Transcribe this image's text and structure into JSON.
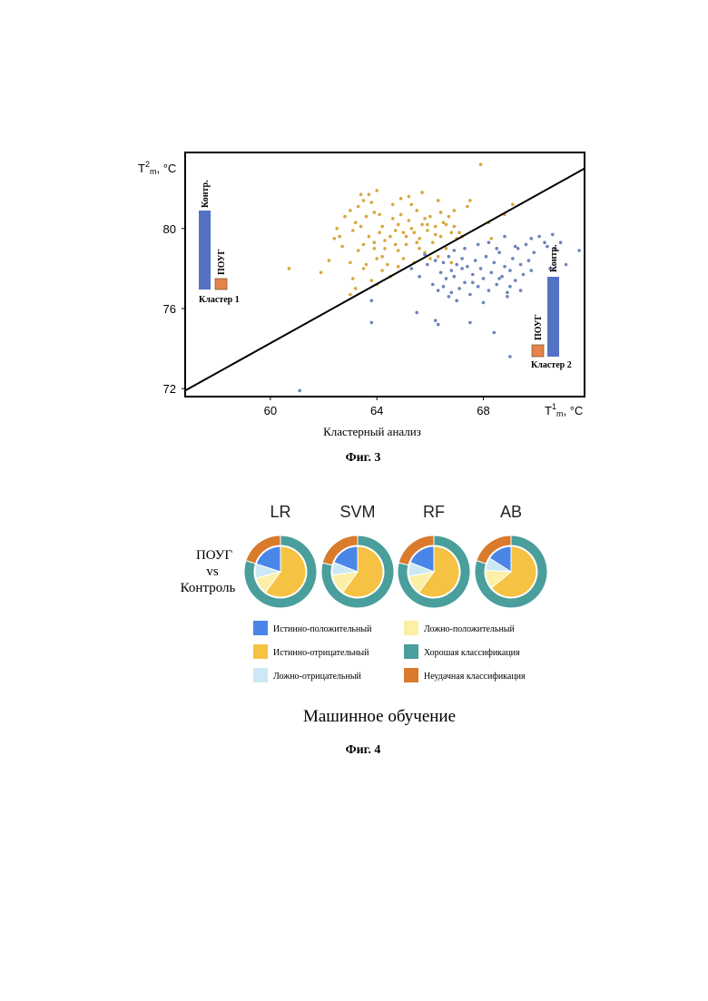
{
  "figure3": {
    "caption": "Фиг. 3",
    "chart_data": {
      "type": "scatter",
      "xlabel": "Кластерный анализ",
      "x_axis_title_parts": [
        "T",
        "1",
        "m",
        ", °C"
      ],
      "y_axis_title_parts": [
        "T",
        "2",
        "m",
        ", °C"
      ],
      "xlim": [
        56.8,
        71.8
      ],
      "ylim": [
        71.6,
        83.8
      ],
      "x_ticks": [
        60,
        64,
        68
      ],
      "x_tick_labels": [
        "60",
        "64",
        "68"
      ],
      "y_ticks": [
        72,
        76,
        80
      ],
      "y_tick_labels": [
        "72",
        "76",
        "80"
      ],
      "separator_line": [
        [
          56.8,
          71.9
        ],
        [
          71.8,
          83.0
        ]
      ],
      "series": [
        {
          "color": "#d6a83e",
          "points": [
            [
              60.7,
              78.0
            ],
            [
              61.9,
              77.8
            ],
            [
              62.2,
              78.4
            ],
            [
              62.4,
              79.5
            ],
            [
              62.5,
              80.0
            ],
            [
              62.7,
              79.1
            ],
            [
              62.8,
              80.6
            ],
            [
              63.0,
              80.9
            ],
            [
              63.1,
              79.9
            ],
            [
              63.2,
              80.3
            ],
            [
              63.3,
              81.1
            ],
            [
              63.4,
              81.7
            ],
            [
              63.5,
              81.4
            ],
            [
              63.6,
              80.6
            ],
            [
              63.7,
              81.7
            ],
            [
              63.8,
              81.3
            ],
            [
              63.9,
              80.8
            ],
            [
              63.0,
              78.3
            ],
            [
              63.1,
              77.5
            ],
            [
              63.2,
              77.0
            ],
            [
              63.0,
              76.7
            ],
            [
              63.3,
              78.9
            ],
            [
              63.5,
              79.2
            ],
            [
              63.6,
              78.2
            ],
            [
              63.7,
              79.6
            ],
            [
              63.9,
              79.3
            ],
            [
              64.0,
              78.5
            ],
            [
              64.1,
              79.8
            ],
            [
              64.2,
              80.1
            ],
            [
              64.3,
              79.0
            ],
            [
              64.4,
              78.2
            ],
            [
              64.5,
              79.6
            ],
            [
              64.6,
              80.5
            ],
            [
              64.7,
              79.2
            ],
            [
              64.8,
              80.2
            ],
            [
              64.9,
              80.7
            ],
            [
              65.0,
              79.8
            ],
            [
              65.1,
              79.2
            ],
            [
              65.2,
              80.4
            ],
            [
              65.3,
              81.2
            ],
            [
              65.4,
              79.8
            ],
            [
              65.5,
              80.9
            ],
            [
              65.6,
              79.5
            ],
            [
              65.7,
              80.2
            ],
            [
              65.8,
              78.8
            ],
            [
              65.9,
              79.9
            ],
            [
              66.0,
              80.6
            ],
            [
              66.1,
              79.3
            ],
            [
              66.2,
              80.1
            ],
            [
              66.3,
              81.4
            ],
            [
              66.4,
              79.6
            ],
            [
              66.5,
              80.3
            ],
            [
              66.6,
              79.0
            ],
            [
              66.7,
              80.6
            ],
            [
              66.8,
              79.8
            ],
            [
              66.9,
              80.9
            ],
            [
              67.0,
              79.5
            ],
            [
              66.8,
              78.3
            ],
            [
              65.0,
              78.5
            ],
            [
              64.5,
              77.6
            ],
            [
              64.2,
              77.9
            ],
            [
              63.8,
              77.4
            ],
            [
              64.8,
              78.1
            ],
            [
              65.4,
              78.3
            ],
            [
              66.0,
              78.5
            ],
            [
              67.1,
              79.8
            ],
            [
              64.1,
              80.7
            ],
            [
              64.6,
              81.2
            ],
            [
              65.8,
              80.5
            ],
            [
              62.6,
              79.6
            ],
            [
              63.5,
              78.0
            ],
            [
              64.0,
              77.2
            ],
            [
              64.8,
              78.9
            ],
            [
              65.6,
              79.0
            ],
            [
              66.3,
              78.6
            ],
            [
              67.5,
              81.4
            ],
            [
              67.9,
              83.2
            ],
            [
              68.2,
              80.3
            ],
            [
              68.8,
              80.7
            ],
            [
              69.1,
              81.2
            ],
            [
              65.2,
              81.6
            ],
            [
              64.9,
              81.5
            ],
            [
              65.7,
              81.8
            ],
            [
              64.0,
              81.9
            ],
            [
              63.4,
              80.1
            ],
            [
              65.1,
              79.6
            ],
            [
              66.4,
              80.8
            ],
            [
              67.2,
              79.6
            ],
            [
              66.9,
              80.1
            ],
            [
              64.2,
              78.6
            ],
            [
              64.7,
              79.9
            ],
            [
              65.3,
              80.0
            ],
            [
              65.9,
              80.2
            ],
            [
              66.6,
              80.2
            ],
            [
              63.9,
              79.0
            ],
            [
              64.3,
              79.4
            ],
            [
              65.5,
              79.3
            ],
            [
              66.2,
              79.7
            ],
            [
              67.4,
              81.1
            ],
            [
              68.3,
              79.5
            ]
          ]
        },
        {
          "color": "#6b84b8",
          "points": [
            [
              61.1,
              71.9
            ],
            [
              63.8,
              76.4
            ],
            [
              63.8,
              75.3
            ],
            [
              65.3,
              78.0
            ],
            [
              65.6,
              77.6
            ],
            [
              65.8,
              78.7
            ],
            [
              65.9,
              78.2
            ],
            [
              66.1,
              77.2
            ],
            [
              66.2,
              78.4
            ],
            [
              66.3,
              76.9
            ],
            [
              66.4,
              77.8
            ],
            [
              66.5,
              78.3
            ],
            [
              66.6,
              77.5
            ],
            [
              66.7,
              78.6
            ],
            [
              66.8,
              76.8
            ],
            [
              66.9,
              77.6
            ],
            [
              67.0,
              78.2
            ],
            [
              67.1,
              77.0
            ],
            [
              67.2,
              78.5
            ],
            [
              67.3,
              77.3
            ],
            [
              67.4,
              78.1
            ],
            [
              67.5,
              76.7
            ],
            [
              67.6,
              77.7
            ],
            [
              67.7,
              78.4
            ],
            [
              67.8,
              77.1
            ],
            [
              67.9,
              78.0
            ],
            [
              68.0,
              77.5
            ],
            [
              68.1,
              78.6
            ],
            [
              68.2,
              76.9
            ],
            [
              68.3,
              77.8
            ],
            [
              68.4,
              78.3
            ],
            [
              68.5,
              77.2
            ],
            [
              68.6,
              78.8
            ],
            [
              68.7,
              77.6
            ],
            [
              68.8,
              78.1
            ],
            [
              68.9,
              76.8
            ],
            [
              69.0,
              77.9
            ],
            [
              69.1,
              78.5
            ],
            [
              69.2,
              77.4
            ],
            [
              69.3,
              79.0
            ],
            [
              69.4,
              78.2
            ],
            [
              69.5,
              77.7
            ],
            [
              69.6,
              79.2
            ],
            [
              69.7,
              78.4
            ],
            [
              69.8,
              77.9
            ],
            [
              69.9,
              78.8
            ],
            [
              70.3,
              79.3
            ],
            [
              70.6,
              79.7
            ],
            [
              70.7,
              79.0
            ],
            [
              71.6,
              78.9
            ],
            [
              70.9,
              79.3
            ],
            [
              70.5,
              78.0
            ],
            [
              71.1,
              78.2
            ],
            [
              68.2,
              79.3
            ],
            [
              68.5,
              79.0
            ],
            [
              67.8,
              79.2
            ],
            [
              66.9,
              78.9
            ],
            [
              67.3,
              79.0
            ],
            [
              65.5,
              75.8
            ],
            [
              66.2,
              75.4
            ],
            [
              66.3,
              75.2
            ],
            [
              67.5,
              75.3
            ],
            [
              68.4,
              74.8
            ],
            [
              69.0,
              73.6
            ],
            [
              69.4,
              76.9
            ],
            [
              66.7,
              76.6
            ],
            [
              67.0,
              76.4
            ],
            [
              68.0,
              76.3
            ],
            [
              68.9,
              76.6
            ],
            [
              66.5,
              77.1
            ],
            [
              67.6,
              77.3
            ],
            [
              68.6,
              77.5
            ],
            [
              69.0,
              77.1
            ],
            [
              66.8,
              77.9
            ],
            [
              67.2,
              78.0
            ],
            [
              69.2,
              79.1
            ],
            [
              68.8,
              79.6
            ],
            [
              69.8,
              79.5
            ],
            [
              70.1,
              79.6
            ],
            [
              70.4,
              79.1
            ]
          ]
        }
      ],
      "annotations": {
        "cluster1": {
          "label": "Кластер 1",
          "bar_labels": [
            "Контр.",
            "ПОУГ"
          ]
        },
        "cluster2": {
          "label": "Кластер 2",
          "bar_labels": [
            "ПОУГ",
            "Контр."
          ]
        }
      },
      "colors": {
        "control_bar": "#5472c4",
        "poag_bar": "#e4844a"
      }
    }
  },
  "figure4": {
    "caption": "Фиг. 4",
    "title": "Машинное обучение",
    "row_label_lines": [
      "ПОУГ",
      "vs",
      "Контроль"
    ],
    "chart_data": {
      "type": "pie",
      "panels": [
        {
          "name": "LR",
          "inner": {
            "tp": 20,
            "tn": 60,
            "fp": 11,
            "fn": 9
          },
          "outer": {
            "good": 80,
            "bad": 20
          }
        },
        {
          "name": "SVM",
          "inner": {
            "tp": 19,
            "tn": 60,
            "fp": 13,
            "fn": 8
          },
          "outer": {
            "good": 79,
            "bad": 21
          }
        },
        {
          "name": "RF",
          "inner": {
            "tp": 19,
            "tn": 60,
            "fp": 12,
            "fn": 9
          },
          "outer": {
            "good": 79,
            "bad": 21
          }
        },
        {
          "name": "AB",
          "inner": {
            "tp": 16,
            "tn": 64,
            "fp": 12,
            "fn": 8
          },
          "outer": {
            "good": 80,
            "bad": 20
          }
        }
      ],
      "legend": [
        {
          "key": "tp",
          "label": "Истинно-положительный",
          "color": "#4a86e8"
        },
        {
          "key": "fp",
          "label": "Ложно-положительный",
          "color": "#fcefa6"
        },
        {
          "key": "tn",
          "label": "Истинно-отрицательный",
          "color": "#f6c244"
        },
        {
          "key": "good",
          "label": "Хорошая классификация",
          "color": "#4a9e9c"
        },
        {
          "key": "fn",
          "label": "Ложно-отрицательный",
          "color": "#cce8f4"
        },
        {
          "key": "bad",
          "label": "Неудачная классификация",
          "color": "#d97a2c"
        }
      ]
    }
  }
}
